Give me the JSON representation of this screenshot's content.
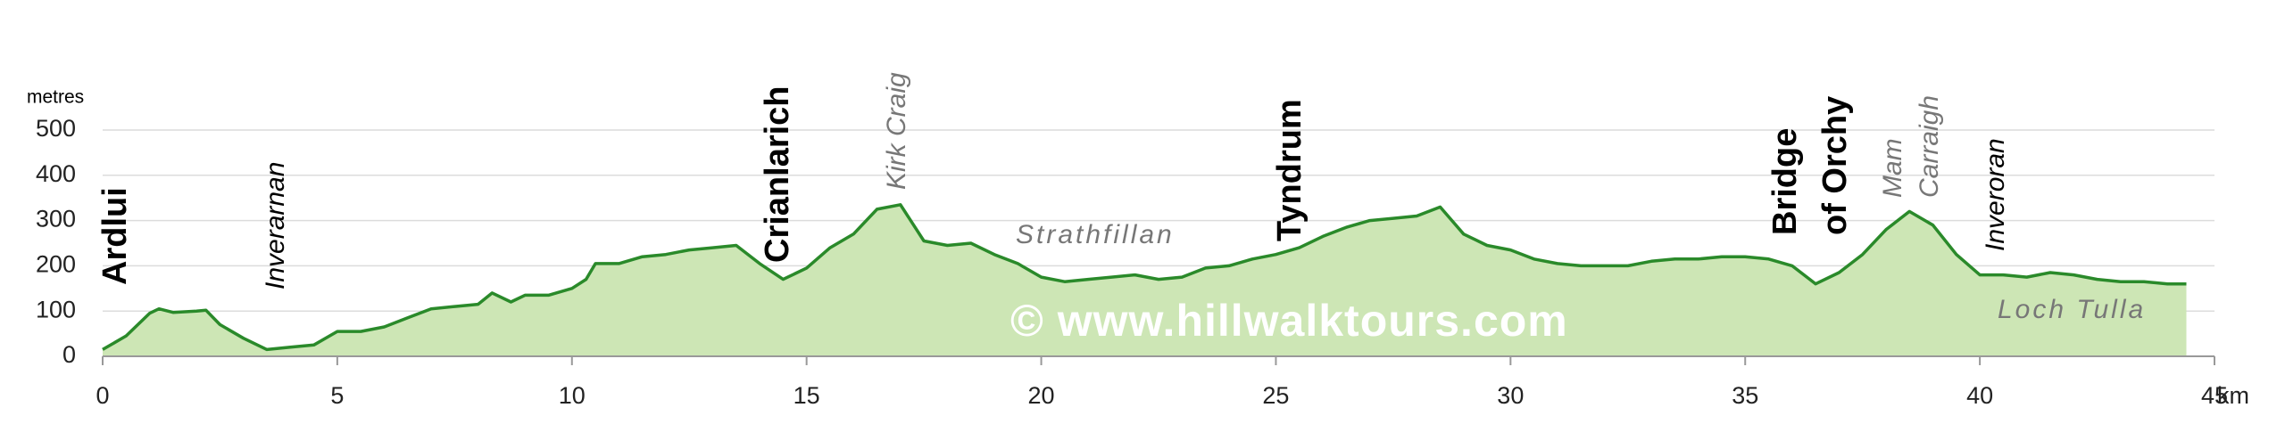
{
  "chart_data": {
    "type": "area",
    "y_label": "metres",
    "x_unit": "km",
    "watermark": "© www.hillwalktours.com",
    "places": [
      "Ardlui",
      "Inverarnan",
      "Crianlarich",
      "Kirk Craig",
      "Tyndrum",
      "Bridge",
      "of Orchy",
      "Mam",
      "Carraigh",
      "Inveroran",
      "Strathfillan",
      "Loch Tulla"
    ],
    "line_color": "#2a8a2a",
    "fill_color": "#cde6b5",
    "grid": true,
    "xlim": [
      0,
      45
    ],
    "ylim": [
      0,
      500
    ],
    "xticks": [
      0,
      5,
      10,
      15,
      20,
      25,
      30,
      35,
      40,
      45
    ],
    "yticks": [
      0,
      100,
      200,
      300,
      400,
      500
    ],
    "x": [
      0,
      0.5,
      1,
      1.2,
      1.5,
      2,
      2.2,
      2.5,
      3,
      3.5,
      4,
      4.5,
      5,
      5.5,
      6,
      6.5,
      7,
      7.5,
      8,
      8.3,
      8.7,
      9,
      9.5,
      10,
      10.3,
      10.5,
      11,
      11.5,
      12,
      12.5,
      13,
      13.5,
      14,
      14.5,
      15,
      15.5,
      16,
      16.5,
      17,
      17.5,
      18,
      18.5,
      19,
      19.5,
      20,
      20.5,
      21,
      21.5,
      22,
      22.5,
      23,
      23.5,
      24,
      24.5,
      25,
      25.5,
      26,
      26.5,
      27,
      27.5,
      28,
      28.5,
      29,
      29.5,
      30,
      30.5,
      31,
      31.5,
      32,
      32.5,
      33,
      33.5,
      34,
      34.5,
      35,
      35.5,
      36,
      36.5,
      37,
      37.5,
      38,
      38.5,
      39,
      39.5,
      40,
      40.5,
      41,
      41.5,
      42,
      42.5,
      43,
      43.5,
      44,
      44.4
    ],
    "values": [
      15,
      45,
      95,
      105,
      97,
      100,
      102,
      70,
      40,
      15,
      20,
      25,
      55,
      55,
      65,
      85,
      105,
      110,
      115,
      140,
      120,
      135,
      135,
      150,
      170,
      205,
      205,
      220,
      225,
      235,
      240,
      245,
      205,
      170,
      195,
      240,
      270,
      325,
      335,
      255,
      245,
      250,
      225,
      205,
      175,
      165,
      170,
      175,
      180,
      170,
      175,
      195,
      200,
      215,
      225,
      240,
      265,
      285,
      300,
      305,
      310,
      330,
      270,
      245,
      235,
      215,
      205,
      200,
      200,
      200,
      210,
      215,
      215,
      220,
      220,
      215,
      200,
      160,
      185,
      225,
      280,
      320,
      290,
      225,
      180,
      180,
      175,
      185,
      180,
      170,
      165,
      165,
      160,
      160
    ]
  }
}
